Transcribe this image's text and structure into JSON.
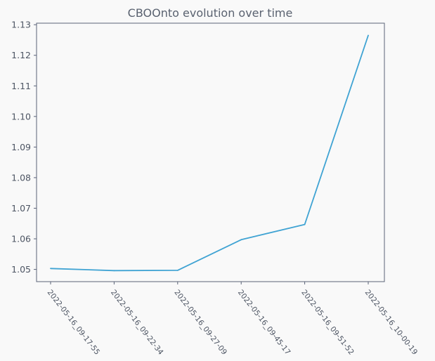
{
  "chart_data": {
    "type": "line",
    "title": "CBOOnto evolution over time",
    "xlabel": "",
    "ylabel": "",
    "categories": [
      "2022-05-16_09-17-55",
      "2022-05-16_09-22-34",
      "2022-05-16_09-27-09",
      "2022-05-16_09-45-17",
      "2022-05-16_09-51-52",
      "2022-05-16_10-00-19"
    ],
    "series": [
      {
        "values": [
          1.0503,
          1.0496,
          1.0497,
          1.0597,
          1.0647,
          1.1265
        ]
      }
    ],
    "ylim": [
      1.046,
      1.1305
    ],
    "yticks": [
      "1.05",
      "1.06",
      "1.07",
      "1.08",
      "1.09",
      "1.10",
      "1.11",
      "1.12",
      "1.13"
    ],
    "grid": false,
    "legend": "none",
    "colors": {
      "line": "#3fa3d3",
      "axis": "#5a6278",
      "background": "#f9f9f9"
    }
  }
}
